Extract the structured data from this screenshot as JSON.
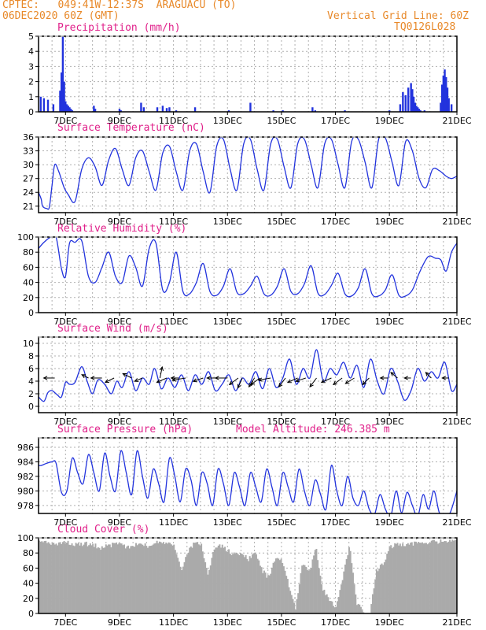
{
  "header": {
    "line1_left": "CPTEC:   049:41W-12:37S  ARAGUACU (TO)",
    "line2_left": "06DEC2020 60Z (GMT)",
    "line1_right": "Vertical Grid Line: 60Z",
    "line2_right": "TQ0126L028"
  },
  "model_altitude": "Model Altitude: 246.385 m",
  "colors": {
    "header": "#e8892a",
    "title": "#e0208a",
    "series": "#2233dd",
    "cloud": "#aaaaaa"
  },
  "x_tick_labels": [
    "7DEC",
    "9DEC",
    "11DEC",
    "13DEC",
    "15DEC",
    "17DEC",
    "19DEC",
    "21DEC"
  ],
  "chart_data": [
    {
      "type": "bar",
      "title": "Precipitation (mm/h)",
      "x_unit": "days since 06DEC 00Z",
      "ylim": [
        0,
        5
      ],
      "yticks": [
        "0",
        "1",
        "2",
        "3",
        "4",
        "5"
      ],
      "series": [
        {
          "x": [
            0.08,
            0.2,
            0.35,
            0.55,
            0.8,
            0.85,
            0.9,
            0.95,
            1.0,
            1.05,
            1.1,
            1.15,
            1.2,
            1.25,
            2.05,
            2.1,
            3.0,
            3.05,
            3.8,
            3.9,
            4.4,
            4.6,
            4.75,
            4.85,
            5.1,
            5.8,
            7.05,
            7.85,
            8.7,
            9.05,
            10.15,
            10.25,
            11.35,
            13.0,
            13.4,
            13.5,
            13.6,
            13.7,
            13.8,
            13.85,
            13.9,
            13.95,
            14.0,
            14.05,
            14.1,
            14.15,
            14.3,
            14.9,
            14.95,
            15.0,
            15.05,
            15.1,
            15.15,
            15.2,
            15.3
          ],
          "values": [
            1.0,
            0.9,
            0.8,
            0.5,
            1.4,
            2.6,
            5.0,
            2.0,
            0.7,
            0.5,
            0.4,
            0.3,
            0.2,
            0.1,
            0.4,
            0.2,
            0.2,
            0.1,
            0.6,
            0.3,
            0.3,
            0.4,
            0.25,
            0.3,
            0.1,
            0.3,
            0.1,
            0.6,
            0.1,
            0.1,
            0.3,
            0.1,
            0.1,
            0.1,
            0.5,
            1.3,
            1.1,
            1.6,
            1.9,
            1.5,
            1.0,
            0.6,
            0.4,
            0.3,
            0.2,
            0.1,
            0.1,
            0.6,
            1.8,
            2.4,
            2.8,
            2.3,
            1.6,
            0.9,
            0.5
          ]
        }
      ]
    },
    {
      "type": "line",
      "title": "Surface Temperature (nC)",
      "x_unit": "days since 06DEC 00Z",
      "ylim": [
        19.6,
        36
      ],
      "yticks": [
        "21",
        "24",
        "27",
        "30",
        "33",
        "36"
      ],
      "series": [
        {
          "x": [
            0.0,
            0.1,
            0.15,
            0.3,
            0.4,
            0.5,
            0.6,
            0.75,
            0.95,
            1.1,
            1.35,
            1.6,
            1.85,
            2.1,
            2.35,
            2.6,
            2.85,
            3.1,
            3.35,
            3.6,
            3.85,
            4.1,
            4.35,
            4.6,
            4.85,
            5.1,
            5.35,
            5.6,
            5.85,
            6.1,
            6.35,
            6.6,
            6.85,
            7.1,
            7.35,
            7.6,
            7.85,
            8.1,
            8.35,
            8.6,
            8.85,
            9.1,
            9.35,
            9.6,
            9.85,
            10.1,
            10.35,
            10.6,
            10.85,
            11.1,
            11.35,
            11.6,
            11.85,
            12.1,
            12.35,
            12.6,
            12.85,
            13.1,
            13.35,
            13.6,
            13.85,
            14.1,
            14.35,
            14.6,
            14.85,
            15.1,
            15.3,
            15.5
          ],
          "values": [
            24.0,
            22.5,
            21.0,
            20.5,
            20.8,
            25.5,
            30.0,
            28.5,
            25.0,
            23.5,
            22.0,
            29.0,
            31.5,
            29.5,
            25.5,
            31.0,
            33.5,
            29.0,
            25.5,
            31.5,
            33.0,
            28.5,
            24.5,
            32.5,
            34.0,
            28.5,
            24.5,
            33.0,
            34.5,
            28.5,
            24.0,
            34.0,
            35.5,
            29.0,
            24.5,
            34.5,
            35.5,
            29.0,
            24.5,
            34.5,
            35.5,
            29.5,
            25.0,
            34.5,
            35.5,
            30.0,
            25.0,
            34.5,
            35.5,
            30.0,
            25.0,
            35.0,
            35.5,
            30.5,
            25.0,
            35.5,
            35.8,
            30.5,
            25.5,
            35.0,
            33.0,
            27.0,
            25.0,
            29.0,
            28.7,
            27.5,
            27.0,
            27.5
          ]
        }
      ]
    },
    {
      "type": "line",
      "title": "Relative Humidity (%)",
      "x_unit": "days since 06DEC 00Z",
      "ylim": [
        0,
        100
      ],
      "yticks": [
        "0",
        "20",
        "40",
        "60",
        "80",
        "100"
      ],
      "series": [
        {
          "x": [
            0.0,
            0.2,
            0.45,
            0.65,
            0.85,
            1.0,
            1.15,
            1.35,
            1.6,
            1.85,
            2.1,
            2.35,
            2.6,
            2.85,
            3.1,
            3.35,
            3.6,
            3.85,
            4.1,
            4.35,
            4.6,
            4.85,
            5.1,
            5.35,
            5.6,
            5.85,
            6.1,
            6.35,
            6.6,
            6.85,
            7.1,
            7.35,
            7.6,
            7.85,
            8.1,
            8.35,
            8.6,
            8.85,
            9.1,
            9.35,
            9.6,
            9.85,
            10.1,
            10.35,
            10.6,
            10.85,
            11.1,
            11.35,
            11.6,
            11.85,
            12.1,
            12.35,
            12.6,
            12.85,
            13.1,
            13.35,
            13.6,
            13.85,
            14.1,
            14.35,
            14.5,
            14.7,
            14.9,
            15.1,
            15.3,
            15.5
          ],
          "values": [
            85.0,
            93.0,
            100.0,
            100.0,
            58.0,
            48.0,
            92.0,
            93.0,
            95.0,
            48.0,
            40.0,
            60.0,
            80.0,
            48.0,
            40.0,
            75.0,
            60.0,
            35.0,
            85.0,
            92.0,
            30.0,
            40.0,
            80.0,
            28.0,
            25.0,
            40.0,
            65.0,
            28.0,
            23.0,
            35.0,
            58.0,
            27.0,
            25.0,
            35.0,
            48.0,
            25.0,
            23.0,
            35.0,
            58.0,
            28.0,
            25.0,
            38.0,
            62.0,
            26.0,
            24.0,
            36.0,
            52.0,
            25.0,
            22.0,
            33.0,
            58.0,
            25.0,
            22.0,
            30.0,
            50.0,
            23.0,
            22.0,
            30.0,
            52.0,
            70.0,
            75.0,
            72.0,
            70.0,
            55.0,
            80.0,
            92.0
          ]
        }
      ]
    },
    {
      "type": "line",
      "title": "Surface Wind (m/s)",
      "x_unit": "days since 06DEC 00Z",
      "ylim": [
        -1,
        11
      ],
      "yticks": [
        "0",
        "2",
        "4",
        "6",
        "8",
        "10"
      ],
      "series": [
        {
          "x": [
            0.0,
            0.2,
            0.35,
            0.5,
            0.7,
            0.85,
            1.0,
            1.15,
            1.35,
            1.6,
            1.8,
            2.0,
            2.2,
            2.45,
            2.7,
            2.9,
            3.1,
            3.35,
            3.6,
            3.85,
            4.1,
            4.3,
            4.55,
            4.8,
            5.05,
            5.3,
            5.55,
            5.8,
            6.05,
            6.3,
            6.55,
            6.8,
            7.05,
            7.3,
            7.55,
            7.8,
            8.05,
            8.3,
            8.55,
            8.8,
            9.05,
            9.3,
            9.55,
            9.8,
            10.05,
            10.3,
            10.55,
            10.8,
            11.05,
            11.3,
            11.55,
            11.8,
            12.05,
            12.3,
            12.55,
            12.8,
            13.05,
            13.3,
            13.55,
            13.8,
            14.05,
            14.3,
            14.55,
            14.8,
            15.05,
            15.3,
            15.5
          ],
          "values": [
            1.5,
            0.8,
            2.2,
            2.5,
            1.8,
            1.5,
            3.8,
            3.5,
            3.8,
            6.3,
            4.0,
            2.0,
            4.2,
            3.5,
            2.0,
            4.0,
            3.0,
            5.5,
            2.5,
            4.5,
            3.5,
            6.0,
            2.8,
            4.5,
            3.0,
            5.0,
            2.5,
            5.0,
            3.5,
            5.5,
            2.5,
            3.5,
            5.0,
            2.5,
            4.5,
            3.5,
            5.5,
            2.8,
            6.0,
            3.0,
            4.5,
            7.5,
            3.5,
            6.0,
            4.5,
            9.0,
            4.0,
            6.0,
            5.0,
            7.0,
            4.5,
            6.5,
            3.0,
            7.5,
            4.0,
            2.0,
            6.0,
            4.0,
            1.0,
            2.5,
            6.0,
            4.0,
            5.5,
            4.5,
            7.0,
            2.5,
            3.5
          ]
        }
      ],
      "wind_vectors": [
        {
          "x": [
            0.6,
            1.85,
            2.35,
            2.8,
            3.45,
            3.85,
            4.5,
            4.75,
            5.2,
            5.45,
            6.1,
            6.65,
            7.0,
            7.4,
            7.55,
            8.0,
            8.2,
            8.6,
            9.15,
            9.6,
            9.9,
            10.3,
            10.85,
            11.25,
            11.7,
            12.25,
            12.95,
            13.3,
            13.8,
            14.55,
            15.2
          ],
          "u": [
            -1.0,
            -0.6,
            -1.0,
            -0.8,
            -0.8,
            -0.7,
            0.2,
            -0.9,
            -0.7,
            -1.2,
            -0.9,
            -1.0,
            -1.1,
            -0.8,
            -0.4,
            -0.5,
            -0.8,
            -1.1,
            -0.6,
            -0.9,
            -0.9,
            -0.6,
            -0.9,
            -0.8,
            -0.8,
            -0.6,
            -0.7,
            -0.6,
            -0.6,
            -0.5,
            -0.6
          ],
          "v": [
            0.0,
            0.3,
            0.0,
            -0.4,
            0.4,
            -0.3,
            1.0,
            -0.4,
            0.0,
            -0.2,
            -0.3,
            0.0,
            0.0,
            -0.6,
            -0.9,
            -0.8,
            -0.6,
            -0.2,
            -0.8,
            -0.4,
            -0.3,
            -0.8,
            -0.4,
            -0.6,
            -0.5,
            -0.6,
            0.0,
            0.5,
            0.0,
            0.5,
            0.0
          ]
        }
      ]
    },
    {
      "type": "line",
      "title": "Surface Pressure (hPa)",
      "x_unit": "days since 06DEC 00Z",
      "ylim": [
        976.9,
        987.3
      ],
      "yticks": [
        "978",
        "980",
        "982",
        "984",
        "986"
      ],
      "series": [
        {
          "x": [
            0.0,
            0.1,
            0.3,
            0.5,
            0.65,
            0.85,
            1.05,
            1.25,
            1.45,
            1.65,
            1.85,
            2.05,
            2.25,
            2.45,
            2.65,
            2.85,
            3.05,
            3.25,
            3.45,
            3.65,
            3.85,
            4.05,
            4.25,
            4.45,
            4.65,
            4.85,
            5.05,
            5.25,
            5.45,
            5.65,
            5.85,
            6.05,
            6.25,
            6.45,
            6.65,
            6.85,
            7.05,
            7.25,
            7.45,
            7.65,
            7.85,
            8.05,
            8.25,
            8.45,
            8.65,
            8.85,
            9.05,
            9.25,
            9.45,
            9.65,
            9.85,
            10.05,
            10.25,
            10.45,
            10.65,
            10.85,
            11.05,
            11.25,
            11.45,
            11.65,
            11.85,
            12.05,
            12.25,
            12.45,
            12.65,
            12.85,
            13.05,
            13.25,
            13.45,
            13.65,
            13.85,
            14.05,
            14.25,
            14.45,
            14.65,
            14.85,
            15.05,
            15.25,
            15.5
          ],
          "values": [
            983.5,
            983.5,
            983.8,
            984.0,
            983.8,
            979.8,
            980.0,
            984.5,
            982.5,
            981.0,
            985.0,
            982.5,
            980.0,
            985.2,
            982.0,
            980.0,
            985.5,
            982.5,
            979.5,
            985.5,
            982.0,
            979.0,
            983.0,
            981.0,
            978.5,
            984.5,
            982.0,
            978.5,
            983.0,
            981.5,
            978.0,
            982.5,
            981.0,
            978.0,
            983.0,
            981.0,
            978.0,
            982.5,
            980.5,
            978.0,
            982.5,
            980.5,
            978.5,
            983.0,
            980.5,
            978.0,
            982.5,
            980.5,
            978.5,
            983.0,
            980.0,
            978.0,
            981.5,
            979.5,
            977.5,
            983.5,
            980.0,
            978.0,
            982.0,
            979.0,
            978.0,
            980.0,
            977.5,
            976.8,
            979.5,
            977.5,
            976.5,
            980.0,
            977.0,
            979.8,
            978.0,
            976.5,
            979.5,
            977.5,
            980.0,
            977.0,
            976.8,
            977.0,
            980.0
          ]
        }
      ]
    },
    {
      "type": "area",
      "title": "Cloud Cover (%)",
      "x_unit": "days since 06DEC 00Z",
      "ylim": [
        0,
        100
      ],
      "yticks": [
        "0",
        "20",
        "40",
        "60",
        "80",
        "100"
      ],
      "series": [
        {
          "x": [
            0.0,
            0.25,
            0.5,
            0.75,
            1.0,
            1.25,
            1.5,
            1.75,
            2.0,
            2.25,
            2.5,
            2.75,
            3.0,
            3.25,
            3.5,
            3.75,
            4.0,
            4.25,
            4.5,
            4.75,
            5.0,
            5.25,
            5.5,
            5.75,
            6.0,
            6.25,
            6.5,
            6.75,
            7.0,
            7.25,
            7.5,
            7.75,
            8.0,
            8.25,
            8.5,
            8.75,
            9.0,
            9.25,
            9.5,
            9.75,
            10.0,
            10.25,
            10.5,
            10.75,
            11.0,
            11.25,
            11.5,
            11.75,
            12.0,
            12.25,
            12.5,
            12.75,
            13.0,
            13.25,
            13.5,
            13.75,
            14.0,
            14.25,
            14.5,
            14.75,
            15.0,
            15.25,
            15.5
          ],
          "values": [
            97.0,
            97.0,
            95.0,
            95.0,
            97.0,
            95.0,
            95.0,
            95.0,
            94.0,
            90.0,
            92.0,
            94.0,
            94.0,
            90.0,
            93.0,
            95.0,
            92.0,
            95.0,
            98.0,
            96.0,
            92.0,
            60.0,
            85.0,
            96.0,
            94.0,
            55.0,
            90.0,
            92.0,
            86.0,
            80.0,
            82.0,
            75.0,
            85.0,
            60.0,
            50.0,
            75.0,
            72.0,
            40.0,
            10.0,
            70.0,
            55.0,
            90.0,
            35.0,
            20.0,
            10.0,
            50.0,
            95.0,
            18.0,
            5.0,
            2.0,
            60.0,
            70.0,
            90.0,
            96.0,
            94.0,
            95.0,
            96.0,
            96.0,
            97.0,
            98.0,
            98.0,
            98.0,
            98.0
          ]
        }
      ]
    }
  ]
}
